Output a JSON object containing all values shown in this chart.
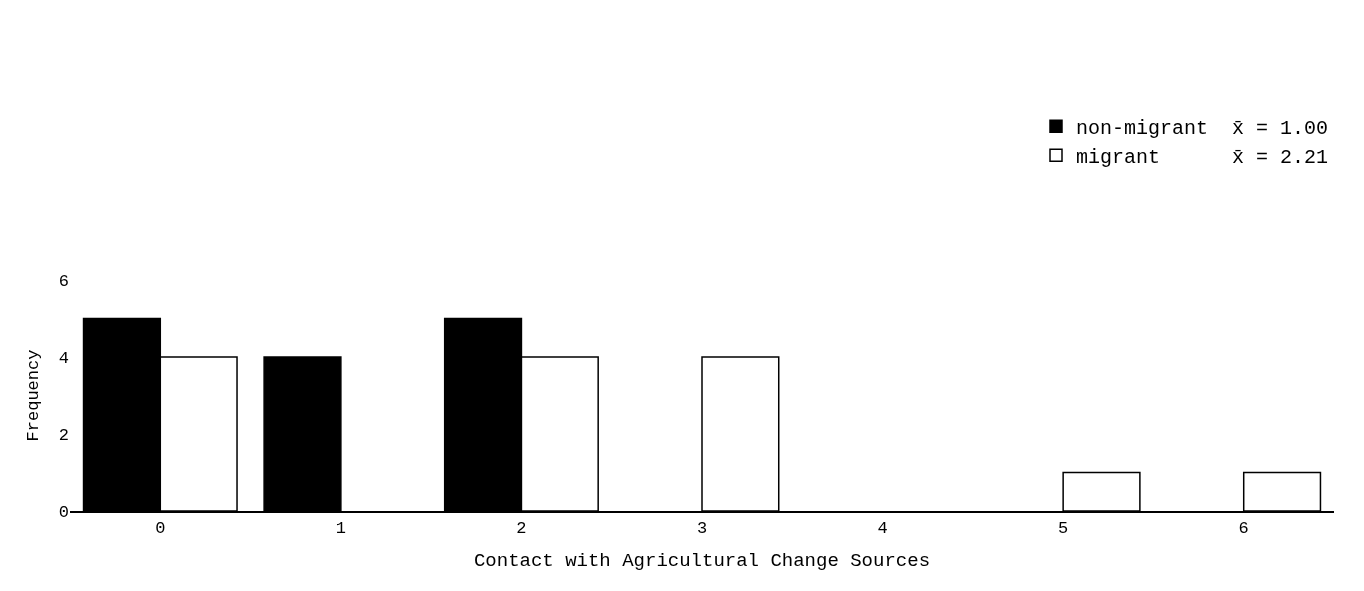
{
  "chart_data": {
    "type": "bar",
    "xlabel": "Contact with Agricultural Change Sources",
    "ylabel": "Frequency",
    "categories": [
      "0",
      "1",
      "2",
      "3",
      "4",
      "5",
      "6"
    ],
    "series": [
      {
        "name": "non-migrant  x̄ = 1.00",
        "color": "#000000",
        "values": [
          5,
          4,
          5,
          0,
          0,
          0,
          0
        ]
      },
      {
        "name": "migrant      x̄ = 2.21",
        "color": "#ffffff",
        "values": [
          4,
          0,
          4,
          4,
          0,
          1,
          1
        ]
      }
    ],
    "ylim": [
      0,
      6
    ],
    "yticks": [
      0,
      2,
      4,
      6
    ],
    "legend": "top right"
  }
}
